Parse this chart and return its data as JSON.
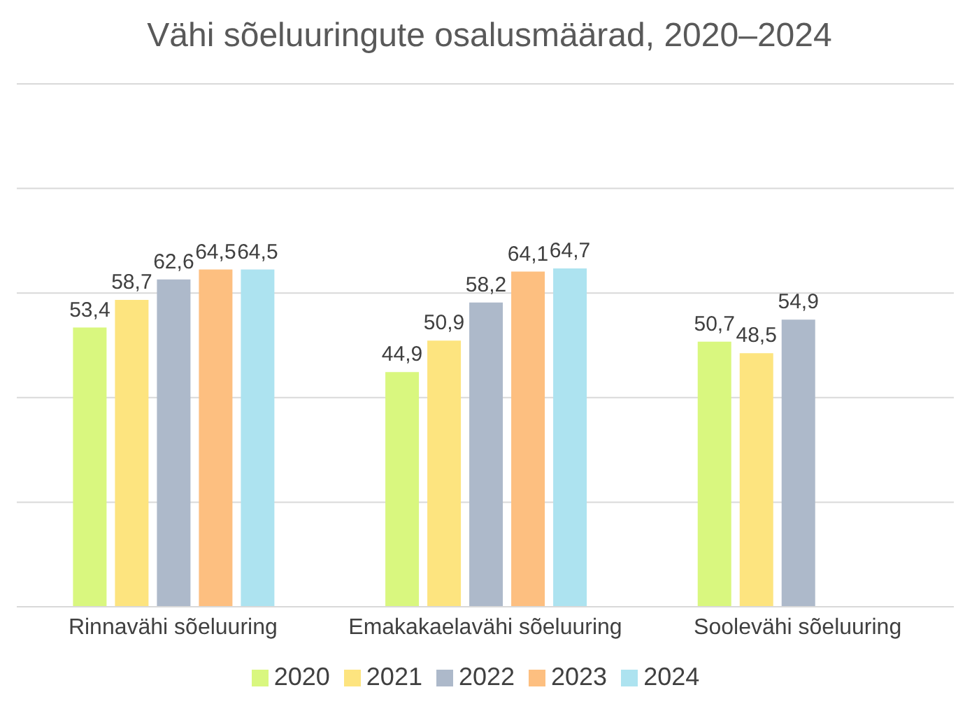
{
  "chart_data": {
    "type": "bar",
    "title": "Vähi sõeluuringute osalusmäärad, 2020–2024",
    "categories": [
      "Rinnavähi sõeluuring",
      "Emakakaelavähi sõeluuring",
      "Soolevähi sõeluuring"
    ],
    "series": [
      {
        "name": "2020",
        "color": "#d9f77f",
        "values": [
          53.4,
          44.9,
          50.7
        ],
        "value_labels": [
          "53,4",
          "44,9",
          "50,7"
        ]
      },
      {
        "name": "2021",
        "color": "#fde47f",
        "values": [
          58.7,
          50.9,
          48.5
        ],
        "value_labels": [
          "58,7",
          "50,9",
          "48,5"
        ]
      },
      {
        "name": "2022",
        "color": "#adb9ca",
        "values": [
          62.6,
          58.2,
          54.9
        ],
        "value_labels": [
          "62,6",
          "58,2",
          "54,9"
        ]
      },
      {
        "name": "2023",
        "color": "#fdbf80",
        "values": [
          64.5,
          64.1,
          null
        ],
        "value_labels": [
          "64,5",
          "64,1",
          null
        ]
      },
      {
        "name": "2024",
        "color": "#ade3f0",
        "values": [
          64.5,
          64.7,
          null
        ],
        "value_labels": [
          "64,5",
          "64,7",
          null
        ]
      }
    ],
    "ylim": [
      0,
      100
    ],
    "yticks": [
      {
        "value": 0,
        "label": null
      },
      {
        "value": 20,
        "label": null
      },
      {
        "value": 40,
        "label": null
      },
      {
        "value": 60,
        "label": null
      },
      {
        "value": 80,
        "label": null
      },
      {
        "value": 100,
        "label": null
      }
    ],
    "tick_labels": "x",
    "grid": "y",
    "legend": "bottom"
  }
}
